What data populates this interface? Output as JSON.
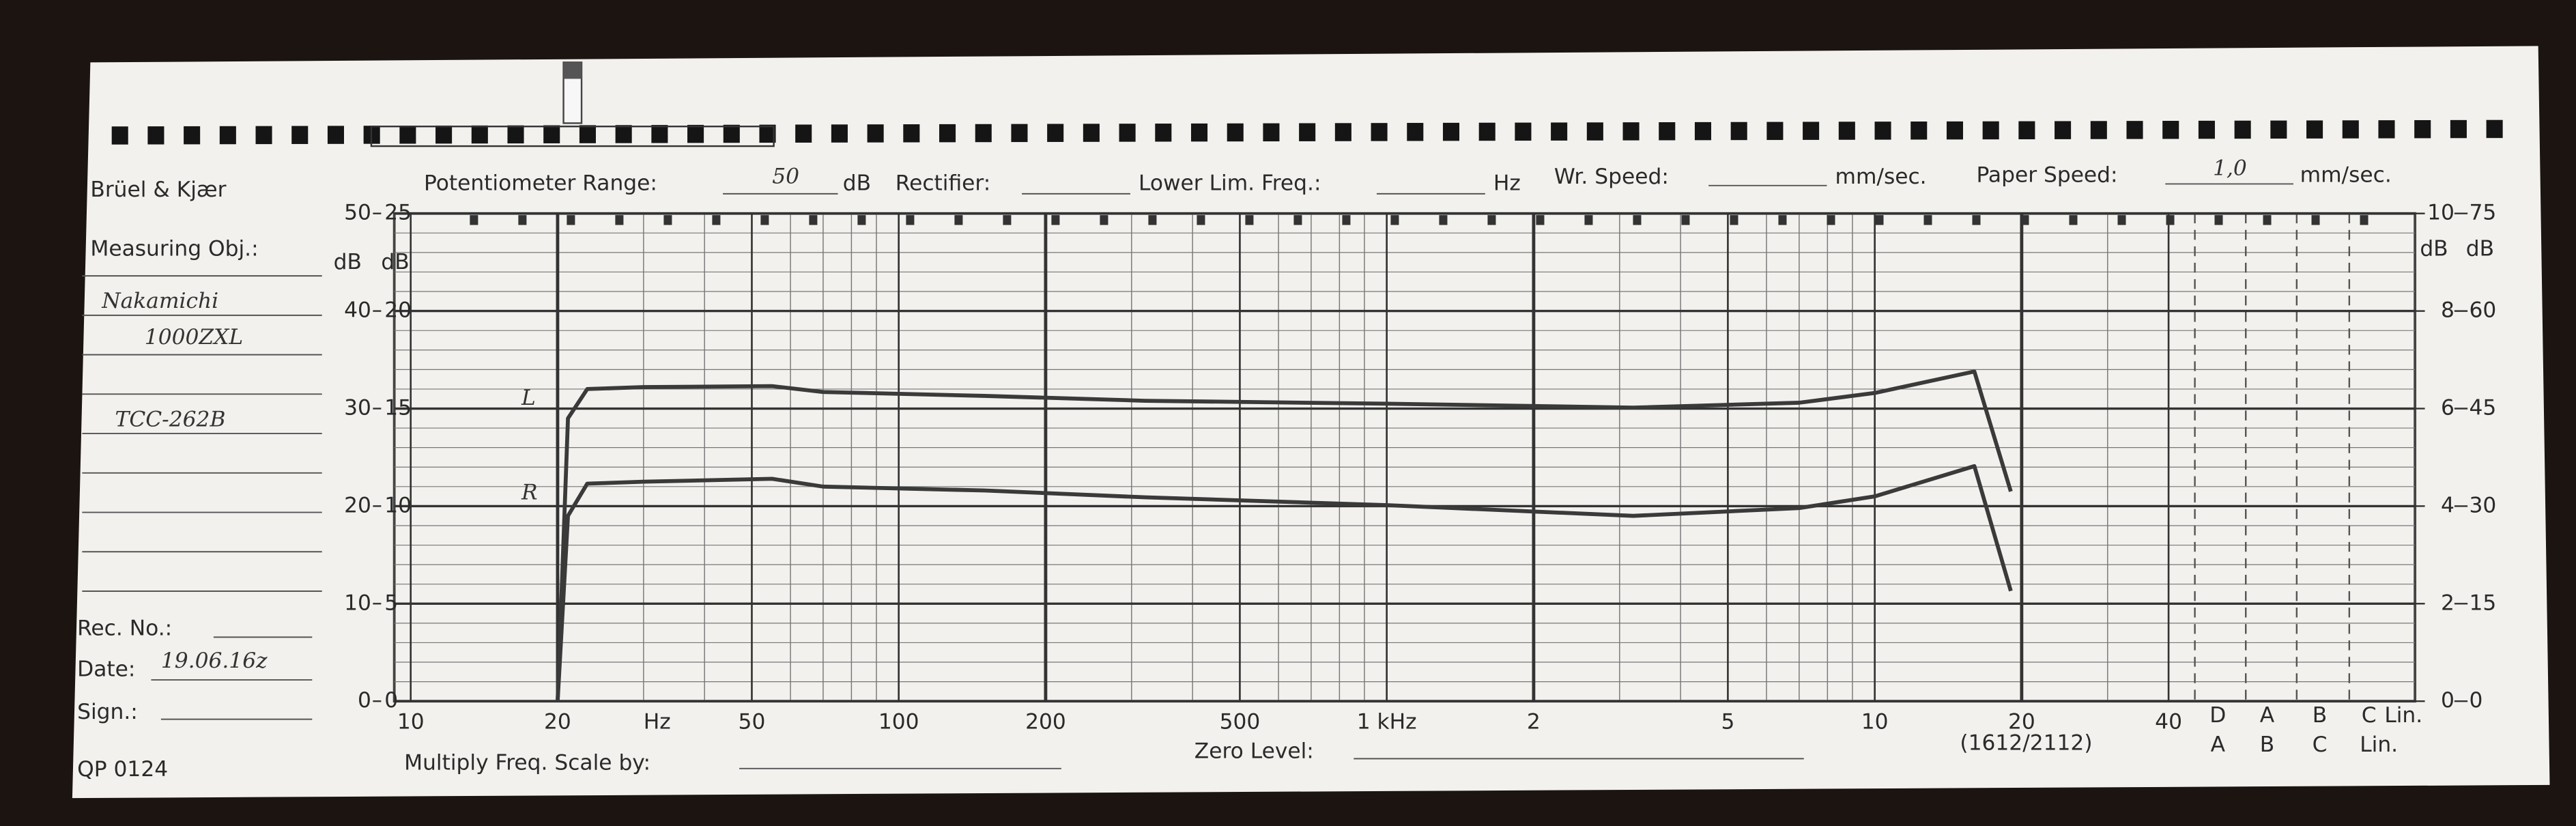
{
  "form": {
    "brand": "Brüel & Kjær",
    "measuring_obj_label": "Measuring Obj.:",
    "measuring_obj_lines": [
      "Nakamichi",
      "1000ZXL",
      "TCC-262B"
    ],
    "rec_no_label": "Rec. No.:",
    "date_label": "Date:",
    "date_value": "19.06.16z",
    "sign_label": "Sign.:",
    "form_code": "QP 0124",
    "pot_range_label": "Potentiometer Range:",
    "pot_range_value": "50",
    "pot_range_unit": "dB",
    "rectifier_label": "Rectifier:",
    "lower_lim_label": "Lower Lim. Freq.:",
    "lower_lim_unit": "Hz",
    "wr_speed_label": "Wr. Speed:",
    "wr_speed_unit": "mm/sec.",
    "paper_speed_label": "Paper Speed:",
    "paper_speed_value": "1,0",
    "paper_speed_unit": "mm/sec.",
    "multiply_label": "Multiply Freq. Scale by:",
    "zero_level_label": "Zero Level:",
    "paper_code": "(1612/2112)",
    "filter_top": [
      "D",
      "A",
      "B",
      "C",
      "Lin."
    ],
    "filter_bottom": [
      "A",
      "B",
      "C",
      "Lin."
    ]
  },
  "chart_data": {
    "type": "line",
    "x_scale": "log",
    "xlabel": "Hz",
    "x": [
      20,
      21,
      23,
      30,
      55,
      70,
      150,
      320,
      1000,
      3200,
      7000,
      10000,
      16000,
      19000
    ],
    "xlim": [
      10,
      40000
    ],
    "xticks": [
      10,
      20,
      50,
      100,
      200,
      500,
      {
        "value": 1000,
        "label": "1 kHz"
      },
      {
        "value": 2000,
        "label": "2"
      },
      {
        "value": 5000,
        "label": "5"
      },
      {
        "value": 10000,
        "label": "10"
      },
      {
        "value": 20000,
        "label": "20"
      },
      {
        "value": 40000,
        "label": "40"
      }
    ],
    "ylabel": "dB",
    "ylim": [
      0,
      50
    ],
    "yticks": [
      0,
      10,
      20,
      30,
      40,
      50
    ],
    "y_inner_label": "dB",
    "y_inner_lim": [
      0,
      25
    ],
    "y_inner_ticks": [
      0,
      5,
      10,
      15,
      20,
      25
    ],
    "y2label": "dB",
    "y2lim": [
      0,
      10
    ],
    "y2ticks": [
      0,
      2,
      4,
      6,
      8,
      10
    ],
    "y3label": "dB",
    "y3lim": [
      0,
      75
    ],
    "y3ticks": [
      0,
      15,
      30,
      45,
      60,
      75
    ],
    "grid": true,
    "series": [
      {
        "name": "L",
        "color": "#3a3a3a",
        "values": [
          0,
          29,
          32,
          32.2,
          32.3,
          31.7,
          31.3,
          30.8,
          30.5,
          30.1,
          30.6,
          31.6,
          33.8,
          21.5
        ]
      },
      {
        "name": "R",
        "color": "#3a3a3a",
        "values": [
          0,
          19,
          22.3,
          22.5,
          22.8,
          22.0,
          21.6,
          20.9,
          20.1,
          19.0,
          19.8,
          21.0,
          24.1,
          11.3
        ]
      }
    ]
  }
}
